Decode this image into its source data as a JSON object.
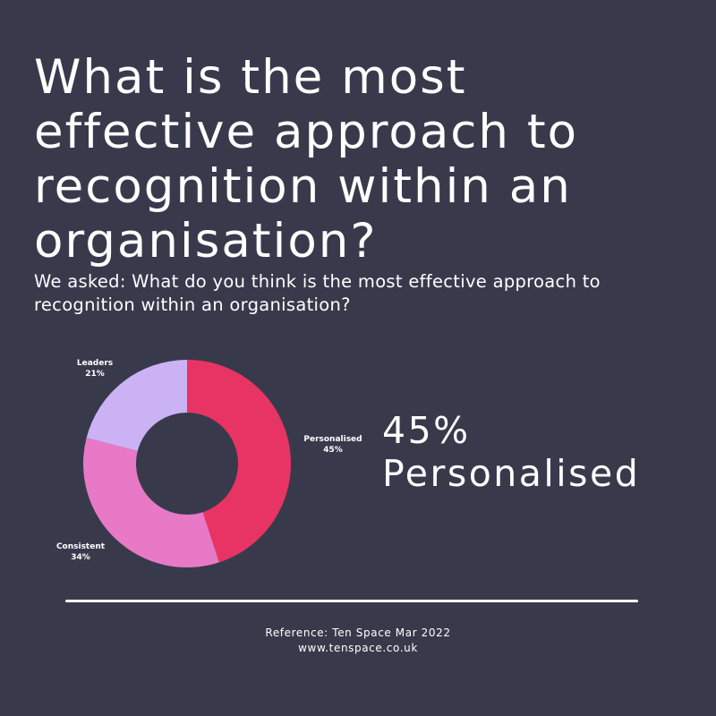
{
  "title": "What is the most\neffective approach to\nrecognition within an\norganisation?",
  "subtitle": "We asked: What do you think is the most effective approach to recognition within an organisation?",
  "highlight": {
    "value": "45%",
    "label": "Personalised"
  },
  "footer": {
    "reference": "Reference: Ten Space Mar 2022",
    "website": "www.tenspace.co.uk"
  },
  "colors": {
    "background": "#383a4c",
    "personalised": "#e83464",
    "consistent": "#e779c6",
    "leaders": "#cab2f5"
  },
  "chart_data": {
    "type": "pie",
    "donut": true,
    "title": "",
    "slices": [
      {
        "label": "Personalised",
        "value": 45,
        "value_label": "45%",
        "color": "#e83464"
      },
      {
        "label": "Consistent",
        "value": 34,
        "value_label": "34%",
        "color": "#e779c6"
      },
      {
        "label": "Leaders",
        "value": 21,
        "value_label": "21%",
        "color": "#cab2f5"
      }
    ]
  }
}
